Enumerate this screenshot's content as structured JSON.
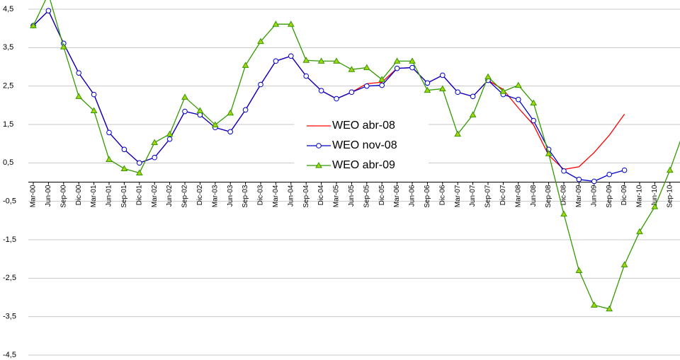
{
  "chart_data": {
    "type": "line",
    "categories": [
      "Mar-00",
      "Jun-00",
      "Sep-00",
      "Dic-00",
      "Mar-01",
      "Jun-01",
      "Sep-01",
      "Dic-01",
      "Mar-02",
      "Jun-02",
      "Sep-02",
      "Dic-02",
      "Mar-03",
      "Jun-03",
      "Sep-03",
      "Dic-03",
      "Mar-04",
      "Jun-04",
      "Sep-04",
      "Dic-04",
      "Mar-05",
      "Jun-05",
      "Sep-05",
      "Dic-05",
      "Mar-06",
      "Jun-06",
      "Sep-06",
      "Dic-06",
      "Mar-07",
      "Jun-07",
      "Sep-07",
      "Dic-07",
      "Mar-08",
      "Jun-08",
      "Sep-08",
      "Dic-08",
      "Mar-09",
      "Jun-09",
      "Sep-09",
      "Dic-09",
      "Mar-10",
      "Jun-10",
      "Sep-10",
      null
    ],
    "series": [
      {
        "name": "WEO abr-08",
        "color": "#ff0000",
        "marker": "none",
        "values": [
          4.07,
          4.46,
          3.61,
          2.84,
          2.28,
          1.29,
          0.85,
          0.5,
          0.64,
          1.12,
          1.84,
          1.75,
          1.42,
          1.31,
          1.88,
          2.54,
          3.15,
          3.28,
          2.76,
          2.38,
          2.17,
          2.34,
          2.56,
          2.6,
          2.96,
          2.98,
          2.58,
          2.78,
          2.34,
          2.23,
          2.65,
          2.41,
          1.93,
          1.49,
          0.7,
          0.33,
          0.4,
          0.77,
          1.22,
          1.77,
          null,
          null,
          null,
          null
        ]
      },
      {
        "name": "WEO nov-08",
        "color": "#0000cc",
        "marker": "circle",
        "values": [
          4.07,
          4.46,
          3.61,
          2.84,
          2.28,
          1.29,
          0.85,
          0.5,
          0.64,
          1.12,
          1.84,
          1.75,
          1.42,
          1.31,
          1.88,
          2.54,
          3.15,
          3.28,
          2.76,
          2.38,
          2.17,
          2.34,
          2.5,
          2.52,
          2.96,
          2.98,
          2.58,
          2.78,
          2.34,
          2.23,
          2.65,
          2.28,
          2.15,
          1.6,
          0.85,
          0.29,
          0.07,
          0.02,
          0.2,
          0.31,
          null,
          null,
          null,
          null
        ]
      },
      {
        "name": "WEO abr-09",
        "color": "#339900",
        "marker": "triangle",
        "values": [
          4.07,
          4.9,
          3.52,
          2.23,
          1.86,
          0.59,
          0.35,
          0.24,
          1.03,
          1.25,
          2.21,
          1.86,
          1.49,
          1.8,
          3.04,
          3.66,
          4.11,
          4.11,
          3.17,
          3.15,
          3.15,
          2.93,
          2.98,
          2.67,
          3.15,
          3.15,
          2.39,
          2.43,
          1.25,
          1.75,
          2.74,
          2.36,
          2.52,
          2.06,
          0.74,
          -0.83,
          -2.3,
          -3.2,
          -3.3,
          -2.15,
          -1.29,
          -0.64,
          0.31,
          1.42
        ]
      }
    ],
    "ylim": [
      -4.5,
      4.5
    ],
    "yticks": [
      {
        "value": 4.5,
        "label": "4,5"
      },
      {
        "value": 3.5,
        "label": "3,5"
      },
      {
        "value": 2.5,
        "label": "2,5"
      },
      {
        "value": 1.5,
        "label": "1,5"
      },
      {
        "value": 0.5,
        "label": "0,5"
      },
      {
        "value": -0.5,
        "label": "-0,5"
      },
      {
        "value": -1.5,
        "label": "-1,5"
      },
      {
        "value": -2.5,
        "label": "-2,5"
      },
      {
        "value": -3.5,
        "label": "-3,5"
      },
      {
        "value": -4.5,
        "label": "-4,5"
      }
    ],
    "grid": true,
    "legend": "center"
  }
}
